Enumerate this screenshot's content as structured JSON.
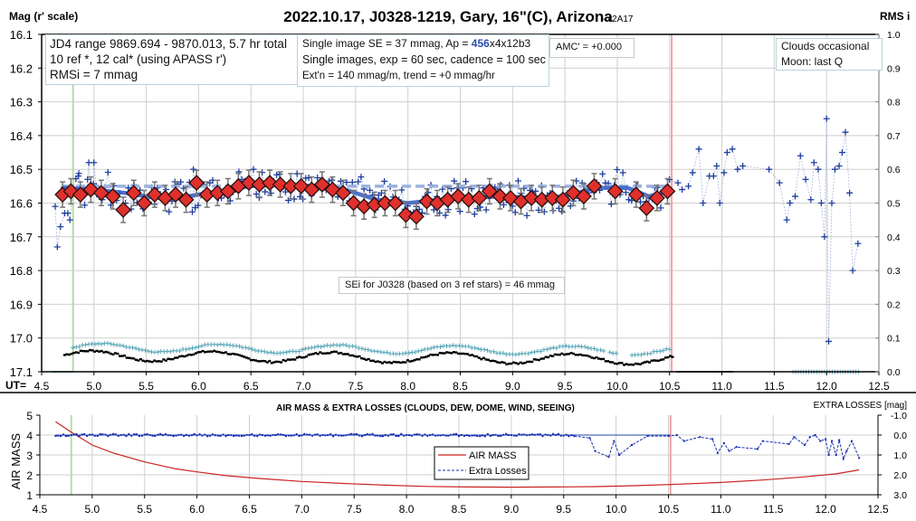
{
  "title": "2022.10.17, J0328-1219, Gary, 16\"(C), Arizona",
  "version": "- v2A17",
  "colors": {
    "grid": "#cfcfcf",
    "raw": "#1f3f9f",
    "raw_line": "#a9b9de",
    "binned_fill": "#e0302c",
    "binned_edge": "#2a1010",
    "trend": "#3a62c8",
    "ref_dashed": "#9bb1e0",
    "rms_cyan": "#5aa8b8",
    "rms_black": "#000000",
    "start_line": "#b8dca0",
    "end_line": "#f4a3a3",
    "airmass": "#cc2222",
    "extra_losses": "#1a2fb0"
  },
  "info_boxes": {
    "jd": [
      "JD4 range 9869.694 - 9870.013, 5.7 hr total",
      "10 ref *, 12 cal*  (using APASS r')",
      "RMSi = 7 mmag"
    ],
    "se": {
      "line1_prefix": "Single image SE = 37 mmag, Ap = ",
      "line1_highlight": "456",
      "line1_suffix": "x4x12b3",
      "line2": "Single images, exp = 60 sec, cadence = 100 sec",
      "line3": "Ext'n = 140 mmag/m, trend = +0 mmag/hr"
    },
    "amc": "AMC' = +0.000",
    "conditions": [
      "Clouds occasional",
      "Moon: last Q"
    ],
    "sei": "SEi for J0328 (based on 3 ref stars) = 46 mmag"
  },
  "chart_data": [
    {
      "type": "scatter",
      "title": "2022.10.17, J0328-1219, Gary, 16\"(C), Arizona",
      "ylabel": "Mag (r' scale)",
      "y2label": "RMS i",
      "xlabel_prefix": "UT=",
      "xlim": [
        4.5,
        12.5
      ],
      "ylim": [
        17.1,
        16.1
      ],
      "y2lim": [
        0.0,
        1.0
      ],
      "x_ticks": [
        "4.5",
        "5.0",
        "5.5",
        "6.0",
        "6.5",
        "7.0",
        "7.5",
        "8.0",
        "8.5",
        "9.0",
        "9.5",
        "10.0",
        "10.5",
        "11.0",
        "11.5",
        "12.0",
        "12.5"
      ],
      "y_ticks": [
        "16.1",
        "16.2",
        "16.3",
        "16.4",
        "16.5",
        "16.6",
        "16.7",
        "16.8",
        "16.9",
        "17.0",
        "17.1"
      ],
      "y2_ticks": [
        "1.0",
        "0.9",
        "0.8",
        "0.7",
        "0.6",
        "0.5",
        "0.4",
        "0.3",
        "0.2",
        "0.1",
        "0.0"
      ],
      "grid": true,
      "vlines": {
        "start": 4.8,
        "end": 10.52
      },
      "reference_level": 16.55,
      "binned": {
        "x": [
          4.7,
          4.78,
          4.87,
          4.97,
          5.07,
          5.18,
          5.28,
          5.38,
          5.48,
          5.58,
          5.68,
          5.78,
          5.88,
          5.98,
          6.08,
          6.18,
          6.28,
          6.38,
          6.48,
          6.58,
          6.68,
          6.78,
          6.88,
          6.98,
          7.08,
          7.18,
          7.28,
          7.38,
          7.48,
          7.58,
          7.68,
          7.78,
          7.88,
          7.98,
          8.08,
          8.18,
          8.28,
          8.38,
          8.48,
          8.58,
          8.68,
          8.78,
          8.88,
          8.98,
          9.08,
          9.18,
          9.28,
          9.38,
          9.48,
          9.58,
          9.68,
          9.78,
          9.98,
          10.18,
          10.28,
          10.38,
          10.48
        ],
        "y": [
          16.575,
          16.565,
          16.575,
          16.56,
          16.57,
          16.58,
          16.62,
          16.57,
          16.6,
          16.575,
          16.585,
          16.575,
          16.59,
          16.54,
          16.575,
          16.57,
          16.565,
          16.55,
          16.54,
          16.545,
          16.54,
          16.545,
          16.55,
          16.55,
          16.56,
          16.545,
          16.56,
          16.57,
          16.6,
          16.61,
          16.605,
          16.6,
          16.6,
          16.635,
          16.64,
          16.595,
          16.6,
          16.59,
          16.58,
          16.59,
          16.585,
          16.565,
          16.58,
          16.585,
          16.595,
          16.585,
          16.59,
          16.585,
          16.59,
          16.57,
          16.58,
          16.55,
          16.565,
          16.575,
          16.615,
          16.585,
          16.565
        ]
      },
      "trend": {
        "x": [
          4.7,
          5.0,
          5.3,
          5.6,
          5.9,
          6.2,
          6.5,
          6.8,
          7.1,
          7.4,
          7.7,
          8.0,
          8.3,
          8.6,
          8.9,
          9.2,
          9.5,
          9.8,
          10.1,
          10.3,
          10.5
        ],
        "y": [
          16.555,
          16.56,
          16.57,
          16.585,
          16.58,
          16.565,
          16.55,
          16.545,
          16.55,
          16.56,
          16.59,
          16.6,
          16.59,
          16.585,
          16.58,
          16.585,
          16.58,
          16.555,
          16.555,
          16.58,
          16.565
        ]
      },
      "raw_outliers": {
        "x": [
          4.63,
          4.65,
          4.68,
          4.72,
          4.75,
          4.77,
          4.85,
          4.9,
          4.95,
          5.0,
          5.95,
          10.58,
          10.62,
          10.68,
          10.72,
          10.78,
          10.82,
          10.88,
          10.92,
          10.95,
          10.98,
          11.02,
          11.05,
          11.1,
          11.15,
          11.2,
          11.45,
          11.55,
          11.62,
          11.65,
          11.7,
          11.75,
          11.8,
          11.85,
          11.88,
          11.92,
          11.95,
          11.98,
          12.0,
          12.02,
          12.05,
          12.08,
          12.12,
          12.15,
          12.18,
          12.22,
          12.25,
          12.3
        ],
        "y": [
          16.61,
          16.73,
          16.67,
          16.63,
          16.63,
          16.65,
          16.52,
          16.56,
          16.48,
          16.48,
          16.5,
          16.54,
          16.56,
          16.55,
          16.51,
          16.44,
          16.6,
          16.52,
          16.52,
          16.49,
          16.6,
          16.51,
          16.45,
          16.44,
          16.5,
          16.49,
          16.5,
          16.54,
          16.65,
          16.6,
          16.58,
          16.46,
          16.53,
          16.59,
          16.48,
          16.5,
          16.6,
          16.7,
          16.35,
          17.01,
          16.6,
          16.5,
          16.49,
          16.45,
          16.39,
          16.57,
          16.8,
          16.72
        ]
      },
      "rms_series": [
        {
          "name": "RMS cyan",
          "note": "cyan crosses, ~0.05-0.09 on RMS axis, 4.8-10.52 UT; ~0.0 after 11.65"
        },
        {
          "name": "RMS black",
          "note": "black dashes, ~0.02-0.07 on RMS axis, 4.7-10.55 UT; ~0.0 after"
        }
      ]
    },
    {
      "type": "line",
      "title": "AIR MASS & EXTRA LOSSES (CLOUDS, DEW, DOME, WIND, SEEING)",
      "ylabel": "AIR MASS",
      "y2label": "EXTRA LOSSES [mag]",
      "xlim": [
        4.5,
        12.5
      ],
      "ylim": [
        1,
        5
      ],
      "y2lim": [
        3.0,
        -1.0
      ],
      "x_ticks": [
        "4.5",
        "5.0",
        "5.5",
        "6.0",
        "6.5",
        "7.0",
        "7.5",
        "8.0",
        "8.5",
        "9.0",
        "9.5",
        "10.0",
        "10.5",
        "11.0",
        "11.5",
        "12.0",
        "12.5"
      ],
      "y_ticks": [
        "5",
        "4",
        "3",
        "2",
        "1"
      ],
      "y2_ticks": [
        "-1.0",
        "0.0",
        "1.0",
        "2.0",
        "3.0"
      ],
      "legend": [
        "AIR MASS",
        "Extra Losses"
      ],
      "legend_position": "center",
      "series": [
        {
          "name": "AIR MASS",
          "x": [
            4.65,
            4.8,
            5.0,
            5.2,
            5.5,
            5.8,
            6.0,
            6.3,
            6.6,
            7.0,
            7.4,
            7.8,
            8.2,
            8.6,
            9.0,
            9.4,
            9.8,
            10.2,
            10.6,
            11.0,
            11.4,
            11.8,
            12.1,
            12.32
          ],
          "y": [
            4.67,
            4.15,
            3.5,
            3.1,
            2.65,
            2.3,
            2.15,
            1.95,
            1.82,
            1.67,
            1.57,
            1.48,
            1.42,
            1.39,
            1.38,
            1.39,
            1.41,
            1.46,
            1.53,
            1.62,
            1.74,
            1.9,
            2.05,
            2.25
          ]
        },
        {
          "name": "Extra Losses",
          "x": [
            4.65,
            5.0,
            6.0,
            7.0,
            8.0,
            9.0,
            9.6,
            9.75,
            9.8,
            9.93,
            9.98,
            10.03,
            10.15,
            10.3,
            10.5,
            10.58,
            10.65,
            10.8,
            10.92,
            10.97,
            11.03,
            11.08,
            11.15,
            11.35,
            11.4,
            11.65,
            11.7,
            11.8,
            11.85,
            11.9,
            11.95,
            12.0,
            12.03,
            12.06,
            12.1,
            12.13,
            12.17,
            12.2,
            12.25,
            12.32
          ],
          "y": [
            0.0,
            0.0,
            0.0,
            0.0,
            0.0,
            0.0,
            0.05,
            0.15,
            0.8,
            1.1,
            0.3,
            1.0,
            0.5,
            0.05,
            0.05,
            0.0,
            0.3,
            0.1,
            0.2,
            0.9,
            0.4,
            0.8,
            0.6,
            0.7,
            0.3,
            0.45,
            0.1,
            0.5,
            0.1,
            0.0,
            0.3,
            0.2,
            1.0,
            0.3,
            1.0,
            0.25,
            1.2,
            0.8,
            0.3,
            1.15
          ]
        }
      ]
    }
  ]
}
